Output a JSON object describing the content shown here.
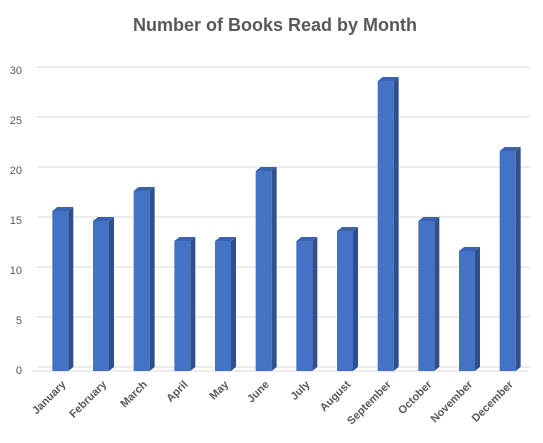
{
  "chart_data": {
    "type": "bar3d",
    "title": "Number of Books Read by Month",
    "categories": [
      "January",
      "February",
      "March",
      "April",
      "May",
      "June",
      "July",
      "August",
      "September",
      "October",
      "November",
      "December"
    ],
    "values": [
      16,
      15,
      18,
      13,
      13,
      20,
      13,
      14,
      29,
      15,
      12,
      22
    ],
    "color": "#4472c4",
    "ylim": [
      0,
      30
    ],
    "yticks": [
      0,
      5,
      10,
      15,
      20,
      25,
      30
    ],
    "grid": true
  }
}
